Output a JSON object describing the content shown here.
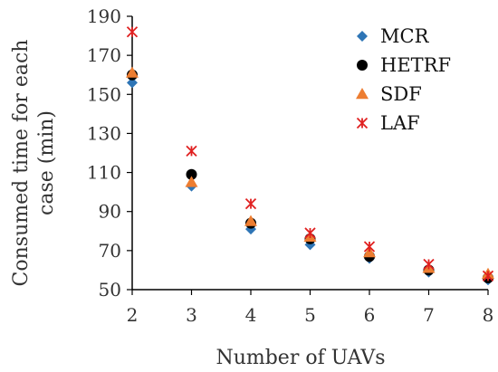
{
  "chart_data": {
    "type": "scatter",
    "xlabel": "Number of UAVs",
    "ylabel_lines": [
      "Consumed time for each",
      "case (min)"
    ],
    "x": [
      2,
      3,
      4,
      5,
      6,
      7,
      8
    ],
    "xlim": [
      2,
      8
    ],
    "ylim": [
      50,
      190
    ],
    "yticks": [
      50,
      70,
      90,
      110,
      130,
      150,
      170,
      190
    ],
    "legend_position": "top-right",
    "grid": false,
    "series": [
      {
        "name": "MCR",
        "marker": "diamond",
        "color": "#2e75b6",
        "values": [
          156,
          103,
          81,
          73,
          66,
          59,
          55
        ]
      },
      {
        "name": "HETRF",
        "marker": "circle",
        "color": "#000000",
        "values": [
          160,
          109,
          84,
          76,
          67,
          60,
          56
        ]
      },
      {
        "name": "SDF",
        "marker": "triangle",
        "color": "#ed7d31",
        "values": [
          161,
          105,
          85,
          77,
          69,
          61,
          58
        ]
      },
      {
        "name": "LAF",
        "marker": "star-cross",
        "color": "#e02020",
        "values": [
          182,
          121,
          94,
          79,
          72,
          63,
          57
        ]
      }
    ]
  }
}
